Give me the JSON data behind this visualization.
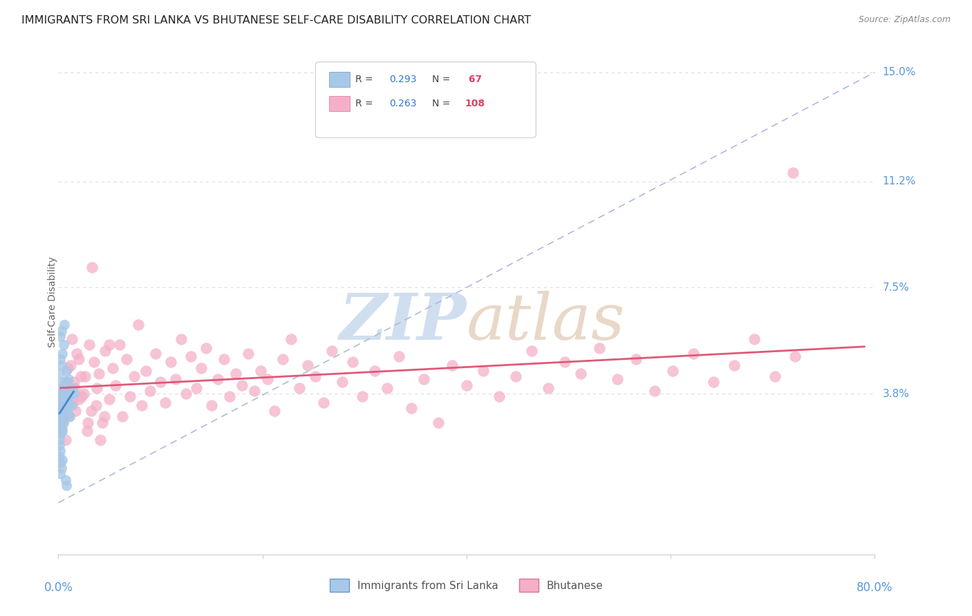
{
  "title": "IMMIGRANTS FROM SRI LANKA VS BHUTANESE SELF-CARE DISABILITY CORRELATION CHART",
  "source": "Source: ZipAtlas.com",
  "ylabel": "Self-Care Disability",
  "xmin": 0.0,
  "xmax": 0.8,
  "ymin": -0.018,
  "ymax": 0.158,
  "sri_lanka_color": "#a8c8e8",
  "sri_lanka_edge": "#6699cc",
  "bhutanese_color": "#f4b0c8",
  "bhutanese_edge": "#e07090",
  "sri_lanka_regression_color": "#4488cc",
  "bhutanese_regression_color": "#e05878",
  "grid_color": "#dddddd",
  "background_color": "#ffffff",
  "watermark_zip_color": "#d0dff0",
  "watermark_atlas_color": "#e8d8c8",
  "axis_tick_color": "#5599dd",
  "sri_lanka_x": [
    0.001,
    0.001,
    0.001,
    0.001,
    0.001,
    0.001,
    0.001,
    0.001,
    0.001,
    0.001,
    0.002,
    0.002,
    0.002,
    0.002,
    0.002,
    0.002,
    0.002,
    0.002,
    0.002,
    0.002,
    0.003,
    0.003,
    0.003,
    0.003,
    0.003,
    0.003,
    0.003,
    0.004,
    0.004,
    0.004,
    0.004,
    0.004,
    0.005,
    0.005,
    0.005,
    0.006,
    0.006,
    0.007,
    0.007,
    0.008,
    0.008,
    0.009,
    0.009,
    0.01,
    0.01,
    0.011,
    0.012,
    0.013,
    0.014,
    0.015,
    0.001,
    0.002,
    0.001,
    0.002,
    0.003,
    0.001,
    0.002,
    0.003,
    0.004,
    0.005,
    0.002,
    0.003,
    0.006,
    0.004,
    0.002,
    0.007,
    0.008
  ],
  "sri_lanka_y": [
    0.03,
    0.032,
    0.028,
    0.025,
    0.033,
    0.027,
    0.035,
    0.022,
    0.031,
    0.036,
    0.029,
    0.034,
    0.031,
    0.026,
    0.038,
    0.028,
    0.033,
    0.03,
    0.024,
    0.037,
    0.032,
    0.028,
    0.035,
    0.025,
    0.04,
    0.03,
    0.034,
    0.033,
    0.029,
    0.037,
    0.025,
    0.042,
    0.031,
    0.028,
    0.038,
    0.034,
    0.04,
    0.036,
    0.042,
    0.033,
    0.046,
    0.031,
    0.038,
    0.035,
    0.043,
    0.03,
    0.038,
    0.034,
    0.04,
    0.038,
    0.02,
    0.018,
    0.016,
    0.014,
    0.012,
    0.045,
    0.05,
    0.048,
    0.052,
    0.055,
    0.058,
    0.06,
    0.062,
    0.015,
    0.01,
    0.008,
    0.006
  ],
  "bhutanese_x": [
    0.002,
    0.004,
    0.006,
    0.008,
    0.01,
    0.012,
    0.014,
    0.016,
    0.018,
    0.02,
    0.022,
    0.025,
    0.028,
    0.03,
    0.032,
    0.035,
    0.038,
    0.04,
    0.043,
    0.046,
    0.05,
    0.053,
    0.056,
    0.06,
    0.063,
    0.067,
    0.07,
    0.074,
    0.078,
    0.082,
    0.086,
    0.09,
    0.095,
    0.1,
    0.105,
    0.11,
    0.115,
    0.12,
    0.125,
    0.13,
    0.135,
    0.14,
    0.145,
    0.15,
    0.156,
    0.162,
    0.168,
    0.174,
    0.18,
    0.186,
    0.192,
    0.198,
    0.205,
    0.212,
    0.22,
    0.228,
    0.236,
    0.244,
    0.252,
    0.26,
    0.268,
    0.278,
    0.288,
    0.298,
    0.31,
    0.322,
    0.334,
    0.346,
    0.358,
    0.372,
    0.386,
    0.4,
    0.416,
    0.432,
    0.448,
    0.464,
    0.48,
    0.496,
    0.512,
    0.53,
    0.548,
    0.566,
    0.584,
    0.602,
    0.622,
    0.642,
    0.662,
    0.682,
    0.702,
    0.722,
    0.003,
    0.005,
    0.007,
    0.009,
    0.011,
    0.013,
    0.015,
    0.017,
    0.02,
    0.023,
    0.026,
    0.029,
    0.033,
    0.037,
    0.041,
    0.045,
    0.05,
    0.72
  ],
  "bhutanese_y": [
    0.032,
    0.028,
    0.038,
    0.042,
    0.03,
    0.048,
    0.035,
    0.04,
    0.052,
    0.036,
    0.044,
    0.038,
    0.025,
    0.055,
    0.032,
    0.049,
    0.04,
    0.045,
    0.028,
    0.053,
    0.036,
    0.047,
    0.041,
    0.055,
    0.03,
    0.05,
    0.037,
    0.044,
    0.062,
    0.034,
    0.046,
    0.039,
    0.052,
    0.042,
    0.035,
    0.049,
    0.043,
    0.057,
    0.038,
    0.051,
    0.04,
    0.047,
    0.054,
    0.034,
    0.043,
    0.05,
    0.037,
    0.045,
    0.041,
    0.052,
    0.039,
    0.046,
    0.043,
    0.032,
    0.05,
    0.057,
    0.04,
    0.048,
    0.044,
    0.035,
    0.053,
    0.042,
    0.049,
    0.037,
    0.046,
    0.04,
    0.051,
    0.033,
    0.043,
    0.028,
    0.048,
    0.041,
    0.046,
    0.037,
    0.044,
    0.053,
    0.04,
    0.049,
    0.045,
    0.054,
    0.043,
    0.05,
    0.039,
    0.046,
    0.052,
    0.042,
    0.048,
    0.057,
    0.044,
    0.051,
    0.026,
    0.034,
    0.022,
    0.047,
    0.04,
    0.057,
    0.042,
    0.032,
    0.05,
    0.037,
    0.044,
    0.028,
    0.082,
    0.034,
    0.022,
    0.03,
    0.055,
    0.115
  ]
}
